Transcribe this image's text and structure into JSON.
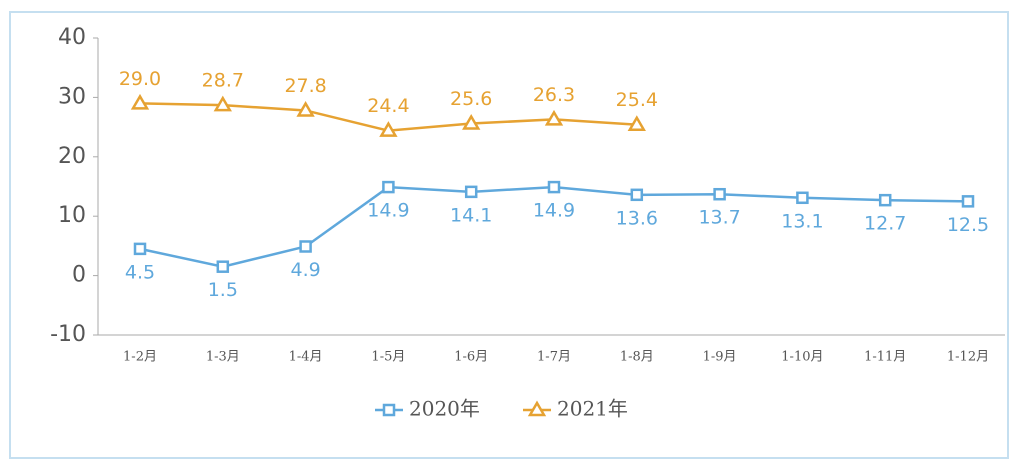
{
  "chart_data": {
    "type": "line",
    "categories": [
      "1-2月",
      "1-3月",
      "1-4月",
      "1-5月",
      "1-6月",
      "1-7月",
      "1-8月",
      "1-9月",
      "1-10月",
      "1-11月",
      "1-12月"
    ],
    "series": [
      {
        "name": "2020年",
        "color": "#5fa8dc",
        "marker": "square",
        "values": [
          4.5,
          1.5,
          4.9,
          14.9,
          14.1,
          14.9,
          13.6,
          13.7,
          13.1,
          12.7,
          12.5
        ]
      },
      {
        "name": "2021年",
        "color": "#e6a232",
        "marker": "triangle",
        "values": [
          29.0,
          28.7,
          27.8,
          24.4,
          25.6,
          26.3,
          25.4,
          null,
          null,
          null,
          null
        ],
        "value_labels": [
          "29.0",
          "28.7",
          "27.8",
          "24.4",
          "25.6",
          "26.3",
          "25.4",
          null,
          null,
          null,
          null
        ]
      }
    ],
    "ylim": [
      -10,
      40
    ],
    "yticks": [
      -10,
      0,
      10,
      20,
      30,
      40
    ],
    "grid": false,
    "legend": "bottom"
  }
}
